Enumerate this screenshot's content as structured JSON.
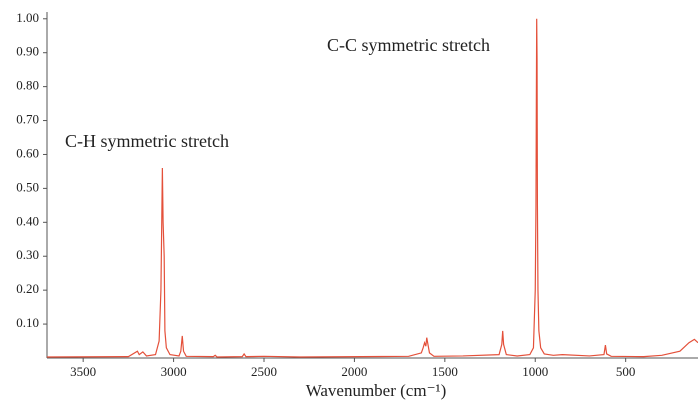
{
  "chart_data": {
    "type": "line",
    "annotations": [
      "C-H symmetric stretch",
      "C-C symmetric stretch"
    ],
    "x_label": "Wavenumber (cm⁻¹)",
    "color": "#e4503a",
    "x": [
      3700,
      3250,
      3200,
      3190,
      3170,
      3150,
      3100,
      3080,
      3070,
      3065,
      3062,
      3058,
      3052,
      3048,
      3040,
      3020,
      2970,
      2960,
      2952,
      2945,
      2930,
      2780,
      2770,
      2760,
      2620,
      2610,
      2600,
      2500,
      2300,
      1700,
      1630,
      1620,
      1612,
      1605,
      1600,
      1595,
      1585,
      1560,
      1400,
      1200,
      1185,
      1180,
      1175,
      1160,
      1100,
      1030,
      1010,
      1000,
      996,
      994,
      992,
      990,
      988,
      985,
      980,
      970,
      950,
      900,
      850,
      700,
      620,
      612,
      605,
      580,
      400,
      300,
      200,
      150,
      120,
      100
    ],
    "values": [
      0.003,
      0.004,
      0.02,
      0.01,
      0.018,
      0.006,
      0.01,
      0.05,
      0.2,
      0.42,
      0.56,
      0.4,
      0.3,
      0.08,
      0.03,
      0.01,
      0.006,
      0.02,
      0.065,
      0.02,
      0.005,
      0.004,
      0.008,
      0.003,
      0.004,
      0.012,
      0.004,
      0.005,
      0.003,
      0.005,
      0.015,
      0.03,
      0.045,
      0.035,
      0.06,
      0.045,
      0.015,
      0.005,
      0.006,
      0.01,
      0.04,
      0.08,
      0.04,
      0.01,
      0.006,
      0.01,
      0.03,
      0.2,
      0.45,
      0.75,
      1.0,
      0.88,
      0.45,
      0.2,
      0.08,
      0.03,
      0.012,
      0.008,
      0.01,
      0.006,
      0.01,
      0.038,
      0.012,
      0.005,
      0.004,
      0.008,
      0.02,
      0.045,
      0.055,
      0.045
    ],
    "xlim": [
      3700,
      100
    ],
    "ylim": [
      0,
      1.02
    ],
    "xticks": [
      3500,
      3000,
      2500,
      2000,
      1500,
      1000,
      500
    ],
    "yticks": [
      {
        "value": 0.1,
        "label": "0.10"
      },
      {
        "value": 0.2,
        "label": "0.20"
      },
      {
        "value": 0.3,
        "label": "0.30"
      },
      {
        "value": 0.4,
        "label": "0.40"
      },
      {
        "value": 0.5,
        "label": "0.50"
      },
      {
        "value": 0.6,
        "label": "0.60"
      },
      {
        "value": 0.7,
        "label": "0.70"
      },
      {
        "value": 0.8,
        "label": "0.80"
      },
      {
        "value": 0.9,
        "label": "0.90"
      },
      {
        "value": 1.0,
        "label": "1.00"
      }
    ]
  }
}
